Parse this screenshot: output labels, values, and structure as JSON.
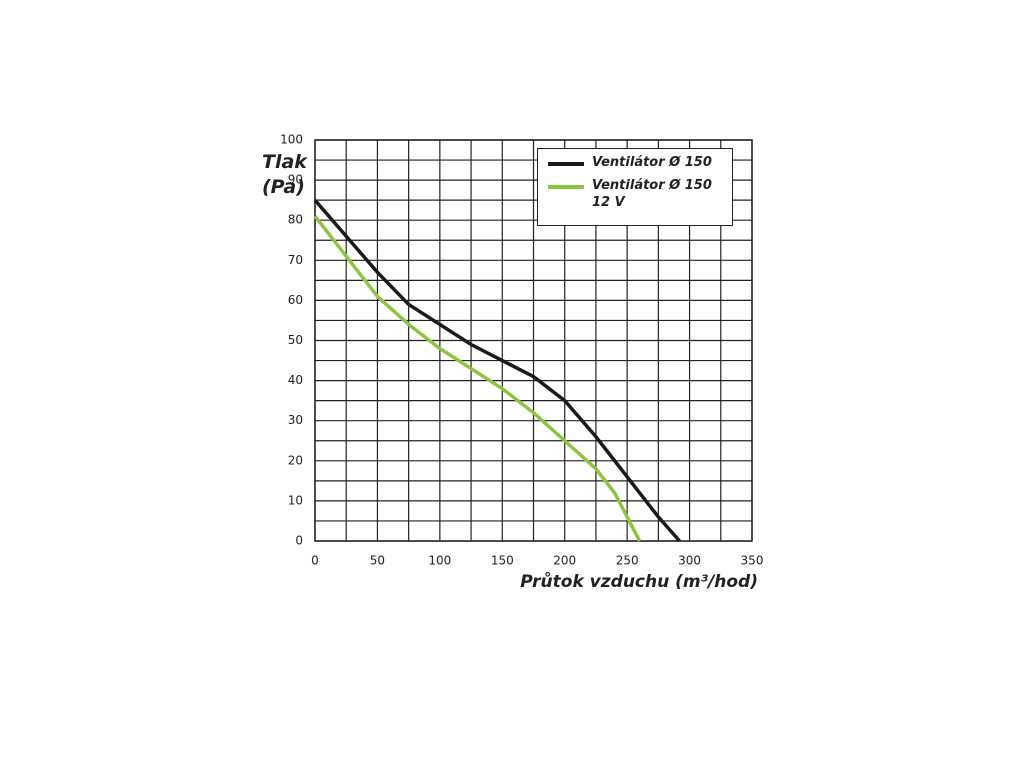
{
  "chart_data": {
    "type": "line",
    "x_label": "Průtok vzduchu (m³/hod)",
    "y_label": "Tlak (Pa)",
    "series": [
      {
        "name": "Ventilátor Ø 150",
        "color": "#1a1a1a",
        "x": [
          0,
          25,
          50,
          75,
          100,
          125,
          150,
          175,
          200,
          225,
          250,
          275,
          292
        ],
        "values": [
          85,
          76,
          67,
          59,
          54,
          49,
          45,
          41,
          35,
          26,
          16,
          6,
          0
        ]
      },
      {
        "name": "Ventilátor Ø 150 12 V",
        "color": "#8cc63f",
        "x": [
          0,
          25,
          50,
          75,
          100,
          125,
          150,
          175,
          200,
          225,
          240,
          250,
          260
        ],
        "values": [
          81,
          71,
          61,
          54,
          48,
          43,
          38,
          32,
          25,
          18,
          12,
          6,
          0
        ]
      }
    ],
    "xlim": [
      0,
      350
    ],
    "xticks": [
      0,
      50,
      100,
      150,
      200,
      250,
      300,
      350
    ],
    "ylim": [
      0,
      100
    ],
    "yticks": [
      0,
      10,
      20,
      30,
      40,
      50,
      60,
      70,
      80,
      90,
      100
    ],
    "grid": true,
    "legend": "upper right"
  }
}
